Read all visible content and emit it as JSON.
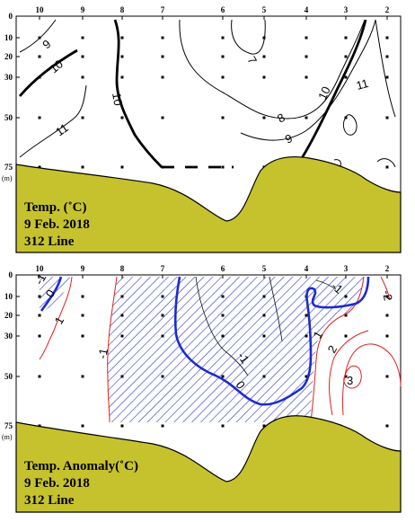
{
  "chart_data": [
    {
      "type": "contour",
      "title_lines": [
        "Temp. (˚C)",
        "9 Feb. 2018",
        "312 Line"
      ],
      "stations": [
        "10",
        "9",
        "8",
        "7",
        "6",
        "5",
        "4",
        "3",
        "2"
      ],
      "depths": [
        "0",
        "10",
        "20",
        "30",
        "50",
        "75"
      ],
      "depth_unit": "(m)",
      "contour_labels": [
        "7",
        "8",
        "9",
        "9",
        "10",
        "10",
        "10",
        "11",
        "11"
      ],
      "colors": {
        "terrain": "#c6c22e",
        "contour": "#000000"
      }
    },
    {
      "type": "contour",
      "title_lines": [
        "Temp. Anomaly(˚C)",
        "9 Feb. 2018",
        "312 Line"
      ],
      "stations": [
        "10",
        "9",
        "8",
        "7",
        "6",
        "5",
        "4",
        "3",
        "2"
      ],
      "depths": [
        "0",
        "10",
        "20",
        "30",
        "50",
        "75"
      ],
      "depth_unit": "(m)",
      "contour_labels": [
        "-1",
        "0",
        "1",
        "-1",
        "-1",
        "0",
        "-1",
        "1",
        "2",
        "3",
        "-1",
        "-2"
      ],
      "colors": {
        "terrain": "#c6c22e",
        "negative": "#1d2ad0",
        "positive": "#e02020",
        "zero": "#1d2ad0"
      }
    }
  ]
}
